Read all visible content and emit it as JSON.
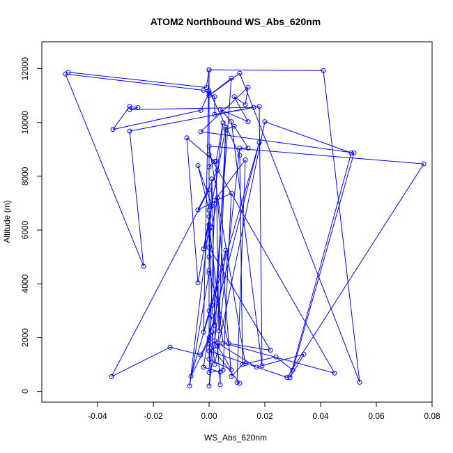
{
  "chart_data": {
    "type": "line",
    "title": "ATOM2 Northbound WS_Abs_620nm",
    "xlabel": "WS_Abs_620nm",
    "ylabel": "Altitude (m)",
    "xlim": [
      -0.06,
      0.08
    ],
    "ylim": [
      -400,
      13000
    ],
    "x_ticks": [
      -0.04,
      -0.02,
      0.0,
      0.02,
      0.04,
      0.06,
      0.08
    ],
    "x_tick_labels": [
      "-0.04",
      "-0.02",
      "0.00",
      "0.02",
      "0.04",
      "0.06",
      "0.08"
    ],
    "y_ticks": [
      0,
      2000,
      4000,
      6000,
      8000,
      10000,
      12000
    ],
    "y_tick_labels": [
      "0",
      "2000",
      "4000",
      "6000",
      "8000",
      "10000",
      "12000"
    ],
    "grid": false,
    "line_color": "#0000ff",
    "marker": "open-circle",
    "series": [
      {
        "points": [
          [
            -0.0505,
            11870
          ],
          [
            -0.001,
            11300
          ],
          [
            0.0,
            11960
          ],
          [
            0.041,
            11930
          ],
          [
            0.054,
            340
          ],
          [
            0.011,
            11830
          ],
          [
            0.0,
            11000
          ],
          [
            0.008,
            11650
          ],
          [
            0.0,
            200
          ],
          [
            0.006,
            5250
          ],
          [
            -0.002,
            2200
          ],
          [
            0.0,
            11950
          ],
          [
            0.0,
            11100
          ],
          [
            -0.003,
            10450
          ],
          [
            -0.0345,
            9740
          ],
          [
            -0.0285,
            10600
          ],
          [
            -0.0255,
            10550
          ],
          [
            -0.0285,
            10480
          ],
          [
            0.016,
            10560
          ],
          [
            -0.0285,
            9680
          ],
          [
            -0.0235,
            4650
          ],
          [
            -0.0515,
            11800
          ],
          [
            -0.002,
            11200
          ],
          [
            0.002,
            10960
          ],
          [
            0.002,
            10300
          ],
          [
            0.018,
            10600
          ],
          [
            0.019,
            950
          ],
          [
            0.008,
            10030
          ],
          [
            0.004,
            10480
          ],
          [
            0.014,
            10030
          ],
          [
            0.009,
            10960
          ],
          [
            0.013,
            10660
          ],
          [
            0.014,
            11310
          ],
          [
            -0.003,
            9660
          ],
          [
            0.052,
            8870
          ],
          [
            0.03,
            790
          ],
          [
            0.024,
            1280
          ],
          [
            0.013,
            1030
          ],
          [
            0.0,
            9120
          ],
          [
            0.077,
            8460
          ],
          [
            0.028,
            520
          ],
          [
            0.0,
            1500
          ],
          [
            0.003,
            1670
          ],
          [
            0.011,
            9050
          ],
          [
            0.014,
            9050
          ],
          [
            0.009,
            9860
          ],
          [
            0.006,
            9740
          ],
          [
            0.002,
            1880
          ],
          [
            0.008,
            800
          ],
          [
            0.0,
            1200
          ],
          [
            0.0,
            8350
          ],
          [
            0.002,
            8550
          ],
          [
            -0.008,
            9430
          ],
          [
            -0.004,
            4040
          ],
          [
            0.001,
            6900
          ],
          [
            -0.004,
            8400
          ],
          [
            0.0,
            6740
          ],
          [
            0.0,
            11180
          ],
          [
            0.011,
            8780
          ],
          [
            0.012,
            1000
          ],
          [
            0.008,
            550
          ],
          [
            0.003,
            7200
          ],
          [
            0.001,
            6100
          ],
          [
            -0.002,
            5300
          ],
          [
            0.006,
            9820
          ],
          [
            0.0035,
            2250
          ],
          [
            0.0025,
            8560
          ],
          [
            0.005,
            9990
          ],
          [
            0.003,
            8220
          ],
          [
            -0.004,
            6750
          ],
          [
            0.008,
            7370
          ],
          [
            0.005,
            790
          ],
          [
            0.0,
            700
          ],
          [
            0.002,
            7100
          ],
          [
            0.013,
            8610
          ],
          [
            0.01,
            330
          ],
          [
            0.011,
            300
          ],
          [
            0.0,
            1760
          ],
          [
            0.0,
            5350
          ],
          [
            0.022,
            1530
          ],
          [
            0.007,
            1780
          ],
          [
            0.0,
            4500
          ],
          [
            0.001,
            7900
          ],
          [
            0.002,
            2450
          ],
          [
            0.001,
            3200
          ],
          [
            0.0,
            6500
          ],
          [
            0.0,
            2000
          ],
          [
            0.018,
            9250
          ],
          [
            -0.0065,
            560
          ],
          [
            0.0,
            1900
          ],
          [
            0.0,
            8800
          ],
          [
            0.045,
            680
          ],
          [
            0.005,
            1800
          ],
          [
            0.0,
            6200
          ],
          [
            -0.007,
            200
          ],
          [
            0.0,
            4400
          ],
          [
            0.0,
            3000
          ],
          [
            0.0,
            5000
          ],
          [
            0.0,
            7500
          ],
          [
            -0.035,
            550
          ],
          [
            -0.014,
            1640
          ],
          [
            -0.003,
            1360
          ],
          [
            0.001,
            2200
          ],
          [
            0.002,
            1000
          ],
          [
            0.02,
            10030
          ],
          [
            0.051,
            8870
          ],
          [
            0.029,
            510
          ],
          [
            0.034,
            1380
          ],
          [
            0.017,
            900
          ],
          [
            0.003,
            1800
          ],
          [
            0.004,
            250
          ],
          [
            0.004,
            720
          ],
          [
            -0.002,
            900
          ],
          [
            0.001,
            2800
          ]
        ]
      }
    ]
  }
}
